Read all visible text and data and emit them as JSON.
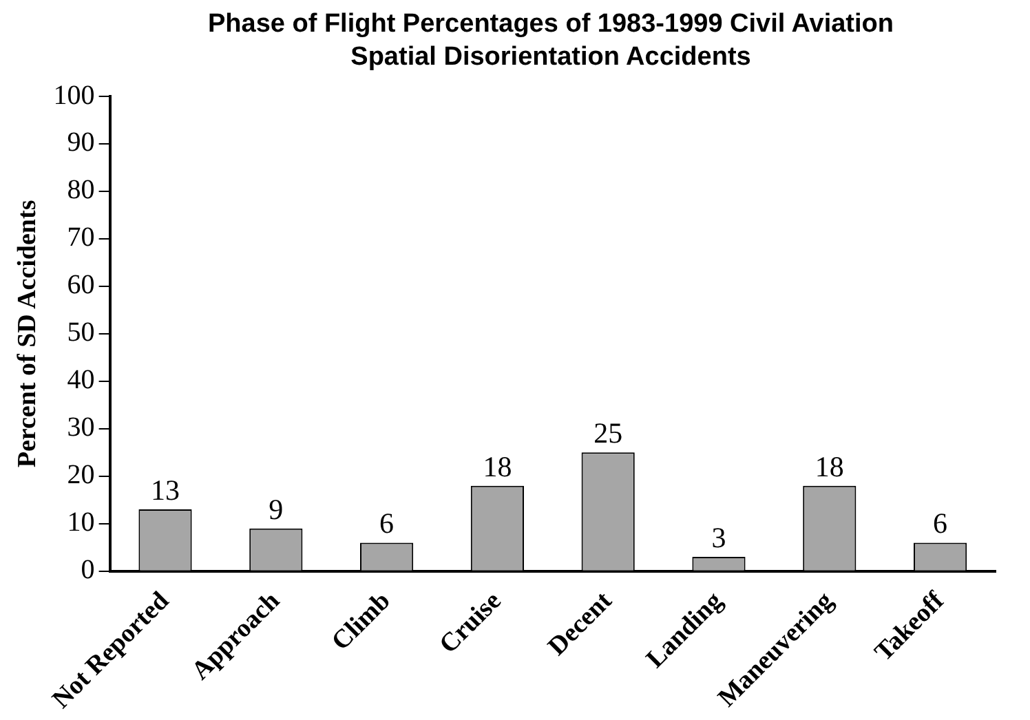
{
  "chart_data": {
    "type": "bar",
    "title": "Phase of Flight Percentages of 1983-1999 Civil Aviation Spatial Disorientation Accidents",
    "ylabel": "Percent of SD Accidents",
    "categories": [
      "Not Reported",
      "Approach",
      "Climb",
      "Cruise",
      "Decent",
      "Landing",
      "Maneuvering",
      "Takeoff"
    ],
    "values": [
      13,
      9,
      6,
      18,
      25,
      3,
      18,
      6
    ],
    "color": "#a6a6a6",
    "ylim": [
      0,
      100
    ],
    "yticks": [
      0,
      10,
      20,
      30,
      40,
      50,
      60,
      70,
      80,
      90,
      100
    ],
    "grid": false,
    "legend": false,
    "data_labels": true
  }
}
